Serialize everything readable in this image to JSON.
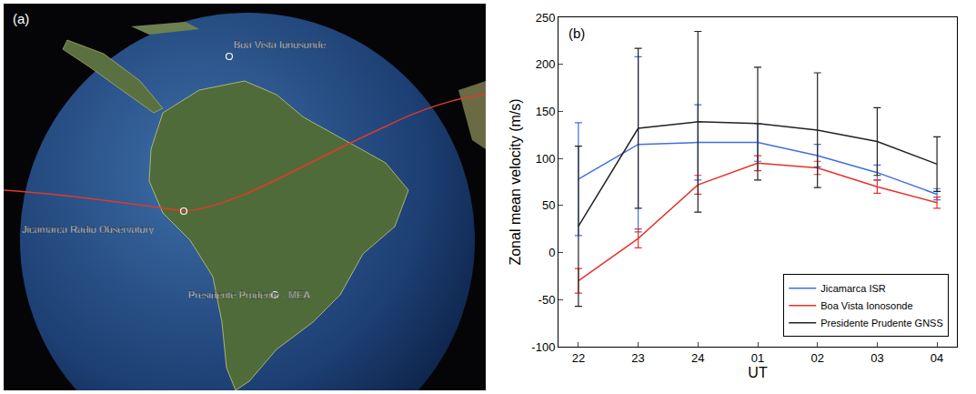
{
  "map": {
    "label": "(a)",
    "places": [
      "Boa Vista Ionosonde",
      "Jicamarca Radio Observatory",
      "Presidente Prudente - MEA"
    ]
  },
  "chart_data": {
    "type": "line",
    "label": "(b)",
    "x_label": "UT",
    "y_label": "Zonal mean velocity (m/s)",
    "categories": [
      "22",
      "23",
      "24",
      "01",
      "02",
      "03",
      "04"
    ],
    "series": [
      {
        "name": "Jicamarca ISR",
        "color": "#3f6fe0",
        "marker": "none",
        "line_style": "solid",
        "values": [
          78,
          115,
          117,
          117,
          103,
          85,
          62
        ],
        "errors": [
          60,
          93,
          40,
          20,
          12,
          8,
          6
        ]
      },
      {
        "name": "Boa Vista Ionosonde",
        "color": "#e8302a",
        "marker": "none",
        "line_style": "solid",
        "values": [
          -30,
          15,
          72,
          95,
          90,
          70,
          53
        ],
        "errors": [
          13,
          10,
          10,
          8,
          7,
          7,
          6
        ]
      },
      {
        "name": "Presidente Prudente GNSS",
        "color": "#222222",
        "marker": "none",
        "line_style": "solid",
        "values": [
          28,
          132,
          139,
          137,
          130,
          118,
          94
        ],
        "errors": [
          85,
          85,
          96,
          60,
          61,
          36,
          29
        ]
      }
    ],
    "ylim": [
      -100,
      250
    ],
    "yticks": [
      -100,
      -50,
      0,
      50,
      100,
      150,
      200,
      250
    ],
    "grid": false,
    "legend": "lower right"
  }
}
